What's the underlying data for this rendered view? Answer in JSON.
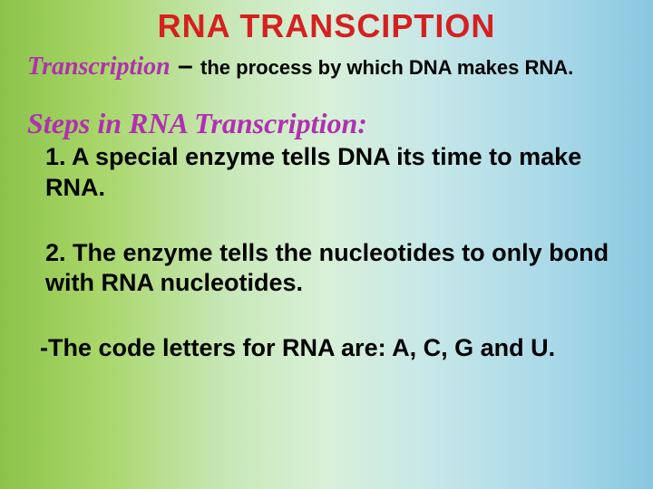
{
  "title": {
    "text": "RNA TRANSCIPTION",
    "color": "#d62020",
    "fontsize": 36
  },
  "definition": {
    "word": "Transcription",
    "word_color": "#b030b0",
    "word_fontsize": 28,
    "dash": " – ",
    "dash_fontsize": 30,
    "text": "the process by which DNA makes RNA.",
    "text_fontsize": 22,
    "text_color": "#000000"
  },
  "steps_heading": {
    "text": "Steps in RNA Transcription:",
    "color": "#b030b0",
    "fontsize": 32
  },
  "steps": [
    {
      "text": "1. A special enzyme tells DNA its time to make RNA.",
      "fontsize": 27
    },
    {
      "text": "2. The enzyme tells the nucleotides to only bond with RNA nucleotides.",
      "fontsize": 27
    }
  ],
  "note": {
    "text": "-The code letters for RNA are: A, C, G and U.",
    "fontsize": 27
  },
  "background_gradient": {
    "left": "#8bc34a",
    "right": "#88c8e0"
  }
}
